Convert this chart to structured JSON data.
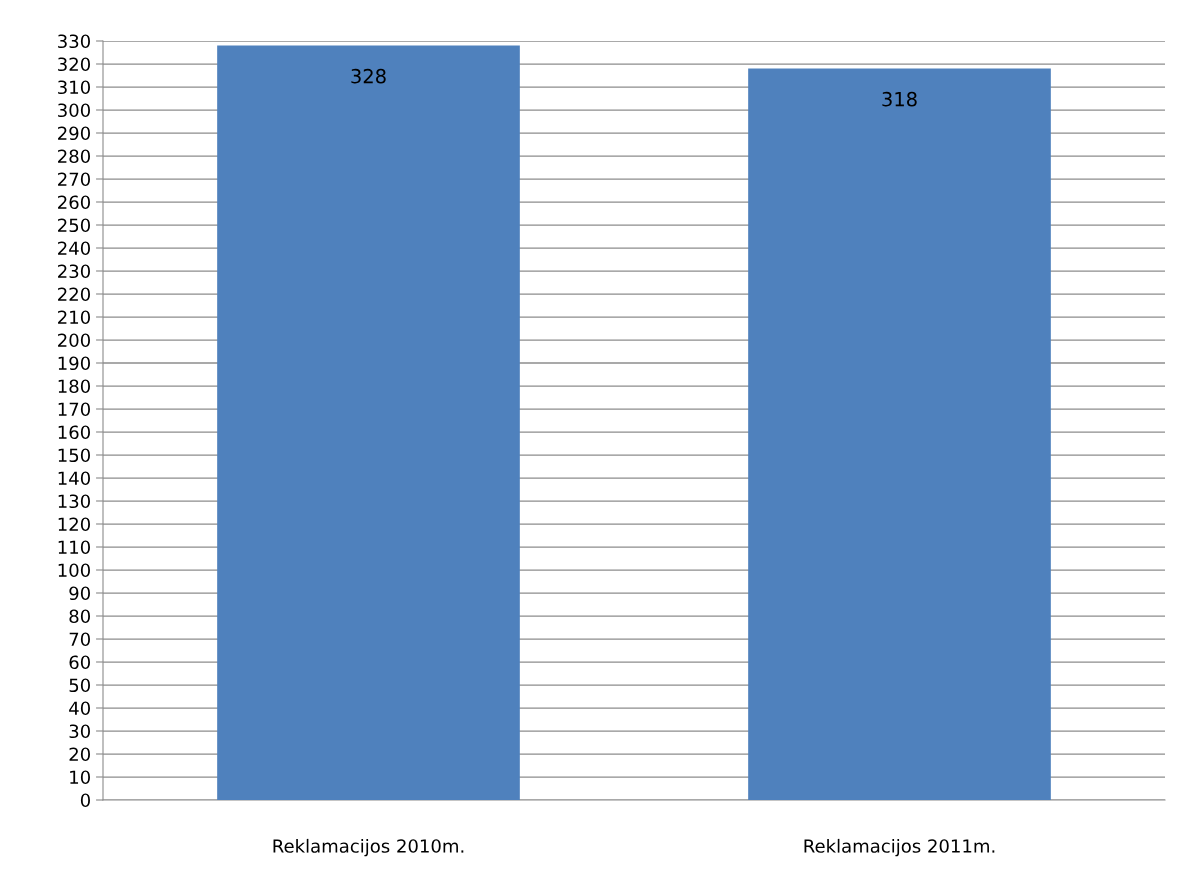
{
  "chart_data": {
    "type": "bar",
    "categories": [
      "Reklamacijos 2010m.",
      "Reklamacijos 2011m."
    ],
    "values": [
      328,
      318
    ],
    "color": "#4f81bd",
    "ylim": [
      0,
      330
    ],
    "yticks": [
      0,
      10,
      20,
      30,
      40,
      50,
      60,
      70,
      80,
      90,
      100,
      110,
      120,
      130,
      140,
      150,
      160,
      170,
      180,
      190,
      200,
      210,
      220,
      230,
      240,
      250,
      260,
      270,
      280,
      290,
      300,
      310,
      320,
      330
    ],
    "grid": "y",
    "data_labels": true,
    "legend": false
  }
}
